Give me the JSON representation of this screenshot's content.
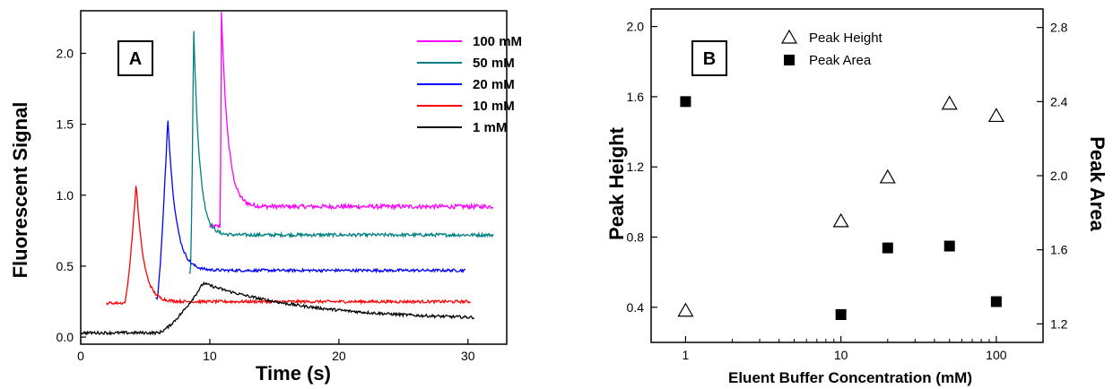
{
  "chart_data": [
    {
      "type": "line",
      "panel_label": "A",
      "xlabel": "Time (s)",
      "ylabel": "Fluorescent Signal",
      "xlim": [
        0,
        33
      ],
      "ylim": [
        -0.05,
        2.3
      ],
      "xticks": [
        "0",
        "10",
        "20",
        "30"
      ],
      "yticks": [
        "0.0",
        "0.5",
        "1.0",
        "1.5",
        "2.0"
      ],
      "legend_position": "top-right",
      "series": [
        {
          "name": "100 mM",
          "color": "#ff00ff",
          "x_start": 10.0,
          "x_end": 32.0,
          "baseline": 0.92,
          "peak_x": 10.9,
          "peak_y": 2.3,
          "start_y": 0.78,
          "rise_start": 10.8,
          "decay": 0.5,
          "noise": 0.015
        },
        {
          "name": "50 mM",
          "color": "#008080",
          "x_start": 8.4,
          "x_end": 32.0,
          "baseline": 0.72,
          "peak_x": 8.75,
          "peak_y": 2.18,
          "start_y": 0.46,
          "rise_start": 8.5,
          "decay": 0.45,
          "noise": 0.012
        },
        {
          "name": "20 mM",
          "color": "#0000ff",
          "x_start": 5.8,
          "x_end": 29.8,
          "baseline": 0.47,
          "peak_x": 6.75,
          "peak_y": 1.55,
          "start_y": 0.27,
          "rise_start": 5.9,
          "decay": 0.6,
          "noise": 0.01
        },
        {
          "name": "10 mM",
          "color": "#ff0000",
          "x_start": 2.0,
          "x_end": 30.2,
          "baseline": 0.25,
          "peak_x": 4.3,
          "peak_y": 1.09,
          "start_y": 0.24,
          "rise_start": 3.4,
          "decay": 0.55,
          "noise": 0.01
        },
        {
          "name": "1 mM",
          "color": "#000000",
          "x_start": 0.0,
          "x_end": 30.5,
          "baseline": 0.12,
          "peak_x": 9.5,
          "peak_y": 0.38,
          "start_y": 0.03,
          "rise_start": 6.0,
          "decay": 8.0,
          "noise": 0.01
        }
      ]
    },
    {
      "type": "scatter",
      "panel_label": "B",
      "xlabel": "Eluent Buffer Concentration (mM)",
      "ylabel": "Peak Height",
      "y2label": "Peak Area",
      "xscale": "log",
      "xlim": [
        0.6,
        200
      ],
      "ylim": [
        0.2,
        2.1
      ],
      "y2lim": [
        1.1,
        2.9
      ],
      "xticks": [
        "1",
        "10",
        "100"
      ],
      "yticks": [
        "0.4",
        "0.8",
        "1.2",
        "1.6",
        "2.0"
      ],
      "y2ticks": [
        "1.2",
        "1.6",
        "2.0",
        "2.4",
        "2.8"
      ],
      "legend_position": "top-center",
      "series": [
        {
          "name": "Peak Height",
          "marker": "open-triangle",
          "axis": "left",
          "x": [
            1,
            10,
            20,
            50,
            100
          ],
          "y": [
            0.38,
            0.89,
            1.14,
            1.56,
            1.49
          ]
        },
        {
          "name": "Peak Area",
          "marker": "filled-square",
          "axis": "right",
          "x": [
            1,
            10,
            20,
            50,
            100
          ],
          "y": [
            2.4,
            1.25,
            1.61,
            1.62,
            1.32
          ]
        }
      ]
    }
  ]
}
